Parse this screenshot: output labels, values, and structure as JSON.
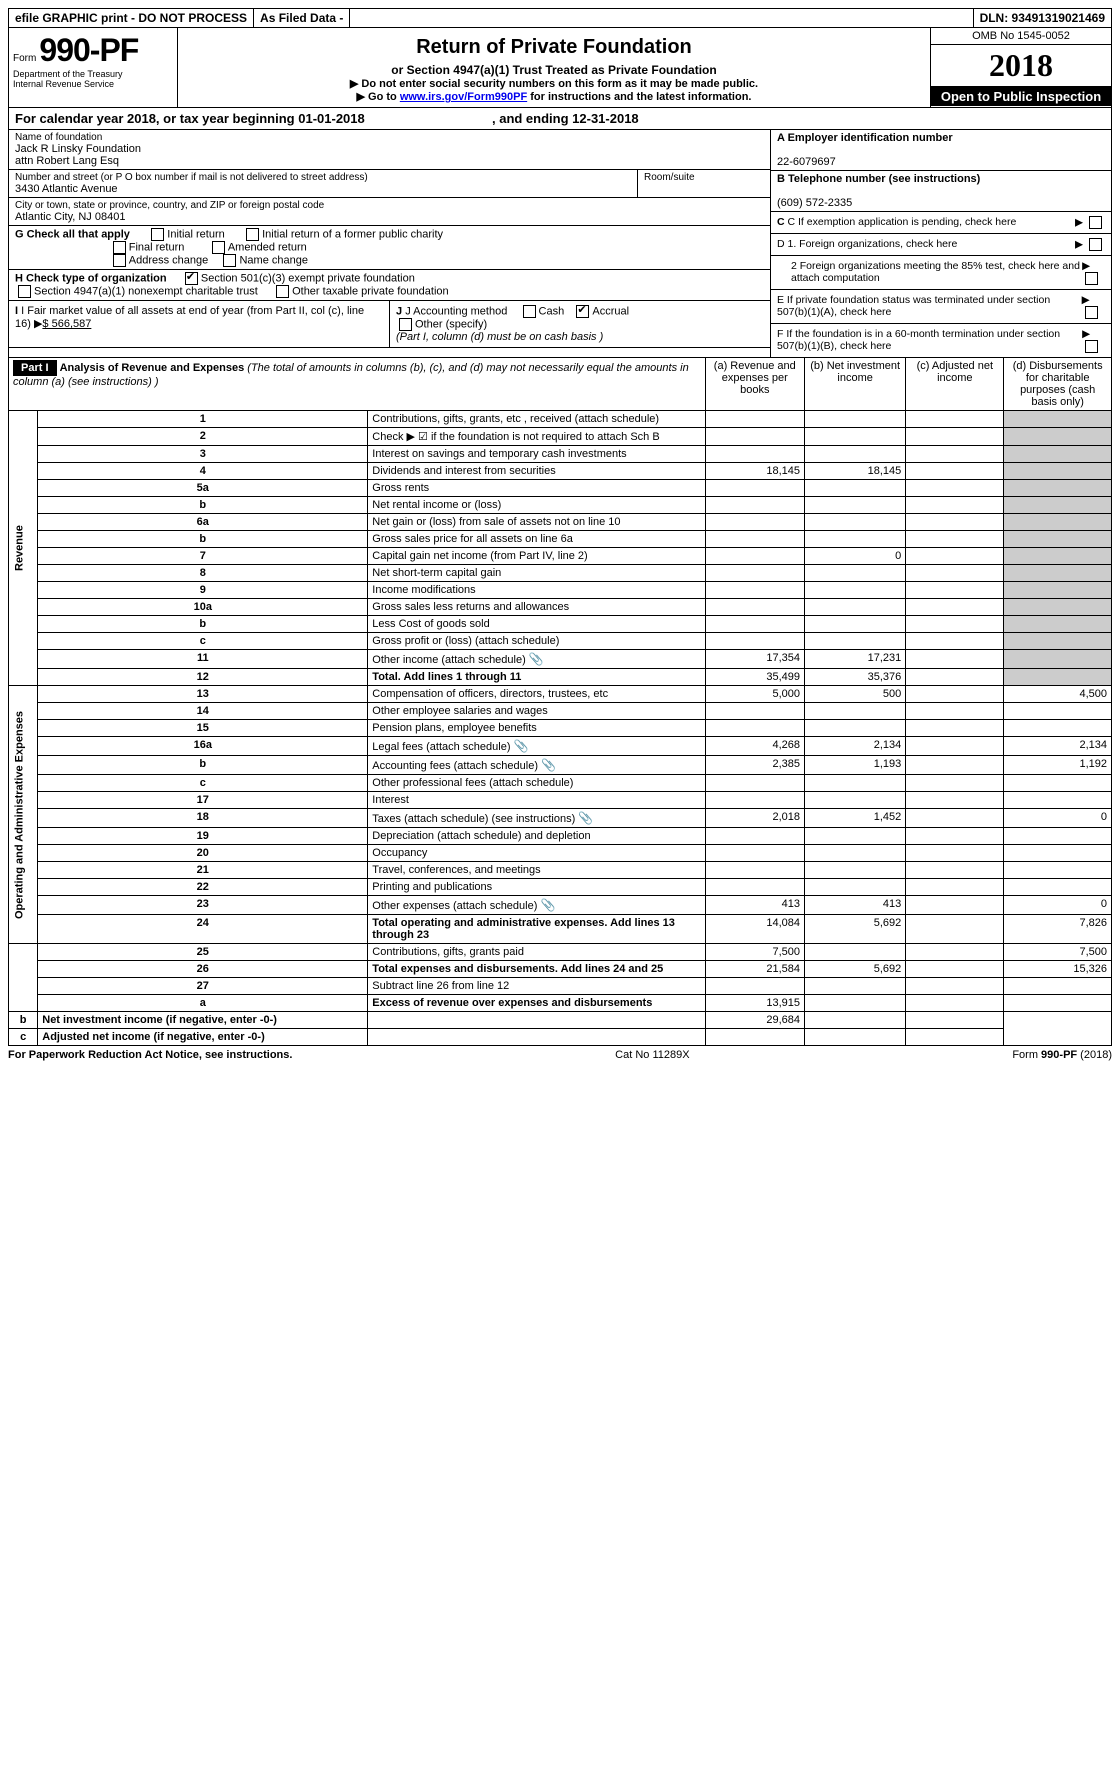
{
  "topbar": {
    "efile": "efile GRAPHIC print - DO NOT PROCESS",
    "asfiled": "As Filed Data -",
    "dln": "DLN: 93491319021469"
  },
  "header": {
    "form_prefix": "Form",
    "form_number": "990-PF",
    "dept": "Department of the Treasury",
    "irs": "Internal Revenue Service",
    "title": "Return of Private Foundation",
    "subtitle": "or Section 4947(a)(1) Trust Treated as Private Foundation",
    "warn1": "▶ Do not enter social security numbers on this form as it may be made public.",
    "warn2_pre": "▶ Go to ",
    "warn2_link": "www.irs.gov/Form990PF",
    "warn2_post": " for instructions and the latest information.",
    "omb": "OMB No 1545-0052",
    "year": "2018",
    "open": "Open to Public Inspection"
  },
  "calyear": {
    "text_pre": "For calendar year 2018, or tax year beginning ",
    "begin": "01-01-2018",
    "mid": " , and ending ",
    "end": "12-31-2018"
  },
  "entity": {
    "name_label": "Name of foundation",
    "name1": "Jack R Linsky Foundation",
    "name2": "attn Robert Lang Esq",
    "addr_label": "Number and street (or P O  box number if mail is not delivered to street address)",
    "addr": "3430 Atlantic Avenue",
    "room_label": "Room/suite",
    "city_label": "City or town, state or province, country, and ZIP or foreign postal code",
    "city": "Atlantic City, NJ  08401",
    "a_label": "A Employer identification number",
    "ein": "22-6079697",
    "b_label": "B Telephone number (see instructions)",
    "phone": "(609) 572-2335",
    "c_label": "C If exemption application is pending, check here"
  },
  "checks": {
    "g_label": "G Check all that apply",
    "g1": "Initial return",
    "g2": "Initial return of a former public charity",
    "g3": "Final return",
    "g4": "Amended return",
    "g5": "Address change",
    "g6": "Name change",
    "h_label": "H Check type of organization",
    "h1": "Section 501(c)(3) exempt private foundation",
    "h2": "Section 4947(a)(1) nonexempt charitable trust",
    "h3": "Other taxable private foundation",
    "i_label": "I Fair market value of all assets at end of year (from Part II, col  (c), line 16)",
    "i_val": "$  566,587",
    "j_label": "J Accounting method",
    "j1": "Cash",
    "j2": "Accrual",
    "j3": "Other (specify)",
    "j_note": "(Part I, column (d) must be on cash basis )",
    "d1": "D 1. Foreign organizations, check here",
    "d2": "2  Foreign organizations meeting the 85% test, check here and attach computation",
    "e": "E  If private foundation status was terminated under section 507(b)(1)(A), check here",
    "f": "F  If the foundation is in a 60-month termination under section 507(b)(1)(B), check here"
  },
  "part1": {
    "label": "Part I",
    "title": "Analysis of Revenue and Expenses",
    "title_note": " (The total of amounts in columns (b), (c), and (d) may not necessarily equal the amounts in column (a) (see instructions) )",
    "col_a": "(a)  Revenue and expenses per books",
    "col_b": "(b)  Net investment income",
    "col_c": "(c)  Adjusted net income",
    "col_d": "(d)  Disbursements for charitable purposes (cash basis only)"
  },
  "sides": {
    "revenue": "Revenue",
    "expenses": "Operating and Administrative Expenses"
  },
  "rows": [
    {
      "n": "1",
      "t": "Contributions, gifts, grants, etc , received (attach schedule)"
    },
    {
      "n": "2",
      "t": "Check ▶ ☑ if the foundation is not required to attach Sch  B"
    },
    {
      "n": "3",
      "t": "Interest on savings and temporary cash investments"
    },
    {
      "n": "4",
      "t": "Dividends and interest from securities",
      "a": "18,145",
      "b": "18,145"
    },
    {
      "n": "5a",
      "t": "Gross rents"
    },
    {
      "n": "b",
      "t": "Net rental income or (loss)"
    },
    {
      "n": "6a",
      "t": "Net gain or (loss) from sale of assets not on line 10"
    },
    {
      "n": "b",
      "t": "Gross sales price for all assets on line 6a"
    },
    {
      "n": "7",
      "t": "Capital gain net income (from Part IV, line 2)",
      "b": "0"
    },
    {
      "n": "8",
      "t": "Net short-term capital gain"
    },
    {
      "n": "9",
      "t": "Income modifications"
    },
    {
      "n": "10a",
      "t": "Gross sales less returns and allowances"
    },
    {
      "n": "b",
      "t": "Less  Cost of goods sold"
    },
    {
      "n": "c",
      "t": "Gross profit or (loss) (attach schedule)"
    },
    {
      "n": "11",
      "t": "Other income (attach schedule)",
      "icon": true,
      "a": "17,354",
      "b": "17,231"
    },
    {
      "n": "12",
      "t": "Total. Add lines 1 through 11",
      "bold": true,
      "a": "35,499",
      "b": "35,376"
    },
    {
      "n": "13",
      "t": "Compensation of officers, directors, trustees, etc",
      "a": "5,000",
      "b": "500",
      "d": "4,500"
    },
    {
      "n": "14",
      "t": "Other employee salaries and wages"
    },
    {
      "n": "15",
      "t": "Pension plans, employee benefits"
    },
    {
      "n": "16a",
      "t": "Legal fees (attach schedule)",
      "icon": true,
      "a": "4,268",
      "b": "2,134",
      "d": "2,134"
    },
    {
      "n": "b",
      "t": "Accounting fees (attach schedule)",
      "icon": true,
      "a": "2,385",
      "b": "1,193",
      "d": "1,192"
    },
    {
      "n": "c",
      "t": "Other professional fees (attach schedule)"
    },
    {
      "n": "17",
      "t": "Interest"
    },
    {
      "n": "18",
      "t": "Taxes (attach schedule) (see instructions)",
      "icon": true,
      "a": "2,018",
      "b": "1,452",
      "d": "0"
    },
    {
      "n": "19",
      "t": "Depreciation (attach schedule) and depletion"
    },
    {
      "n": "20",
      "t": "Occupancy"
    },
    {
      "n": "21",
      "t": "Travel, conferences, and meetings"
    },
    {
      "n": "22",
      "t": "Printing and publications"
    },
    {
      "n": "23",
      "t": "Other expenses (attach schedule)",
      "icon": true,
      "a": "413",
      "b": "413",
      "d": "0"
    },
    {
      "n": "24",
      "t": "Total operating and administrative expenses. Add lines 13 through 23",
      "bold": true,
      "a": "14,084",
      "b": "5,692",
      "d": "7,826"
    },
    {
      "n": "25",
      "t": "Contributions, gifts, grants paid",
      "a": "7,500",
      "d": "7,500"
    },
    {
      "n": "26",
      "t": "Total expenses and disbursements. Add lines 24 and 25",
      "bold": true,
      "a": "21,584",
      "b": "5,692",
      "d": "15,326"
    },
    {
      "n": "27",
      "t": "Subtract line 26 from line 12"
    },
    {
      "n": "a",
      "t": "Excess of revenue over expenses and disbursements",
      "bold": true,
      "a": "13,915"
    },
    {
      "n": "b",
      "t": "Net investment income (if negative, enter -0-)",
      "bold": true,
      "b": "29,684"
    },
    {
      "n": "c",
      "t": "Adjusted net income (if negative, enter -0-)",
      "bold": true
    }
  ],
  "footer": {
    "left": "For Paperwork Reduction Act Notice, see instructions.",
    "mid": "Cat  No  11289X",
    "right": "Form 990-PF (2018)"
  }
}
